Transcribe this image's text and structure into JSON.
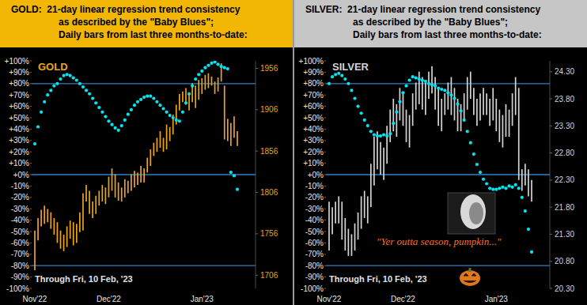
{
  "chart_data": [
    {
      "type": "combo",
      "title": [
        "GOLD:  21-day linear regression trend consistency",
        "as described by the \"Baby Blues\";",
        "Daily bars from last three months-to-date:"
      ],
      "label": "GOLD",
      "footnote": "Through Fri, 10 Feb, '23",
      "categories": [
        "Nov'22",
        null,
        null,
        null,
        null,
        null,
        null,
        null,
        null,
        null,
        null,
        null,
        null,
        null,
        null,
        null,
        null,
        null,
        null,
        null,
        null,
        null,
        null,
        "Dec'22",
        null,
        null,
        null,
        null,
        null,
        null,
        null,
        null,
        null,
        null,
        null,
        null,
        null,
        null,
        null,
        null,
        null,
        null,
        null,
        null,
        null,
        null,
        null,
        null,
        null,
        null,
        null,
        null,
        "Jan'23",
        null,
        null,
        null,
        null,
        null,
        null,
        null,
        null,
        null,
        null,
        null
      ],
      "ylim": [
        -100,
        100
      ],
      "yticks": [
        {
          "value": 100,
          "label": "+100%"
        },
        {
          "value": 90,
          "label": "+90%"
        },
        {
          "value": 80,
          "label": "+80%"
        },
        {
          "value": 70,
          "label": "+70%"
        },
        {
          "value": 60,
          "label": "+60%"
        },
        {
          "value": 50,
          "label": "+50%"
        },
        {
          "value": 40,
          "label": "+40%"
        },
        {
          "value": 30,
          "label": "+30%"
        },
        {
          "value": 20,
          "label": "+20%"
        },
        {
          "value": 10,
          "label": "+10%"
        },
        {
          "value": 0,
          "label": "+0%"
        },
        {
          "value": -10,
          "label": "-10%"
        },
        {
          "value": -20,
          "label": "-20%"
        },
        {
          "value": -30,
          "label": "-30%"
        },
        {
          "value": -40,
          "label": "-40%"
        },
        {
          "value": -50,
          "label": "-50%"
        },
        {
          "value": -60,
          "label": "-60%"
        },
        {
          "value": -70,
          "label": "-70%"
        },
        {
          "value": -80,
          "label": "-80%"
        },
        {
          "value": -90,
          "label": "-90%"
        },
        {
          "value": -100,
          "label": "-100%"
        }
      ],
      "y2lim": [
        1690,
        1965
      ],
      "y2ticks": [
        1956,
        1906,
        1856,
        1806,
        1756,
        1706
      ],
      "reference_lines": [
        80,
        0,
        -80
      ],
      "series": [
        {
          "type": "bar",
          "axis": "y2",
          "color": "#eaa520",
          "values": [
            1760,
            1775,
            1785,
            1790,
            1786,
            1782,
            1775,
            1770,
            1760,
            1755,
            1765,
            1772,
            1770,
            1768,
            1782,
            1805,
            1815,
            1808,
            1795,
            1802,
            1808,
            1815,
            1812,
            1825,
            1835,
            1828,
            1818,
            1812,
            1822,
            1820,
            1828,
            1832,
            1830,
            1838,
            1835,
            1848,
            1858,
            1866,
            1872,
            1880,
            1872,
            1888,
            1885,
            1900,
            1912,
            1925,
            1928,
            1932,
            1925,
            1938,
            1935,
            1942,
            1944,
            1948,
            1950,
            1946,
            1940,
            1945,
            1962,
            1935,
            1895,
            1890,
            1898,
            1880
          ],
          "low": [
            1712,
            1748,
            1765,
            1768,
            1770,
            1762,
            1755,
            1745,
            1738,
            1735,
            1740,
            1750,
            1742,
            1745,
            1758,
            1760,
            1795,
            1780,
            1775,
            1780,
            1790,
            1795,
            1792,
            1800,
            1808,
            1800,
            1796,
            1795,
            1800,
            1805,
            1808,
            1812,
            1815,
            1818,
            1818,
            1830,
            1838,
            1850,
            1855,
            1860,
            1855,
            1858,
            1868,
            1876,
            1888,
            1905,
            1915,
            1912,
            1905,
            1915,
            1908,
            1918,
            1925,
            1930,
            1932,
            1935,
            1925,
            1928,
            1940,
            1870,
            1868,
            1862,
            1872,
            1862
          ]
        },
        {
          "type": "scatter",
          "color": "#00e5f0",
          "marker": "circle",
          "values": [
            27,
            42,
            55,
            64,
            70,
            74,
            78,
            80,
            84,
            87,
            88,
            87,
            85,
            83,
            80,
            77,
            74,
            71,
            67,
            63,
            59,
            55,
            51,
            47,
            44,
            41,
            39,
            43,
            48,
            53,
            57,
            61,
            64,
            66,
            68,
            69,
            69,
            67,
            64,
            61,
            58,
            55,
            52,
            50,
            48,
            47,
            55,
            63,
            71,
            78,
            84,
            88,
            91,
            94,
            96,
            98,
            99,
            97,
            95,
            94,
            93,
            2,
            -1,
            -13
          ]
        }
      ]
    },
    {
      "type": "combo",
      "title": [
        "SILVER:  21-day linear regression trend consistency",
        "as described by the \"Baby Blues\";",
        "Daily bars from last three months-to-date:"
      ],
      "label": "SILVER",
      "footnote": "Through Fri, 10 Feb, '23",
      "annotation": "\"Yer outta season, pumpkin...\"",
      "categories": [
        "Nov'22",
        null,
        null,
        null,
        null,
        null,
        null,
        null,
        null,
        null,
        null,
        null,
        null,
        null,
        null,
        null,
        null,
        null,
        null,
        null,
        null,
        null,
        null,
        "Dec'22",
        null,
        null,
        null,
        null,
        null,
        null,
        null,
        null,
        null,
        null,
        null,
        null,
        null,
        null,
        null,
        null,
        null,
        null,
        null,
        null,
        null,
        null,
        null,
        null,
        null,
        null,
        null,
        null,
        "Jan'23",
        null,
        null,
        null,
        null,
        null,
        null,
        null,
        null,
        null,
        null,
        null
      ],
      "ylim": [
        -100,
        100
      ],
      "yticks": [
        {
          "value": 100,
          "label": "+100%"
        },
        {
          "value": 90,
          "label": "+90%"
        },
        {
          "value": 80,
          "label": "+80%"
        },
        {
          "value": 70,
          "label": "+70%"
        },
        {
          "value": 60,
          "label": "+60%"
        },
        {
          "value": 50,
          "label": "+50%"
        },
        {
          "value": 40,
          "label": "+40%"
        },
        {
          "value": 30,
          "label": "+30%"
        },
        {
          "value": 20,
          "label": "+20%"
        },
        {
          "value": 10,
          "label": "+10%"
        },
        {
          "value": 0,
          "label": "+0%"
        },
        {
          "value": -10,
          "label": "-10%"
        },
        {
          "value": -20,
          "label": "-20%"
        },
        {
          "value": -30,
          "label": "-30%"
        },
        {
          "value": -40,
          "label": "-40%"
        },
        {
          "value": -50,
          "label": "-50%"
        },
        {
          "value": -60,
          "label": "-60%"
        },
        {
          "value": -70,
          "label": "-70%"
        },
        {
          "value": -80,
          "label": "-80%"
        },
        {
          "value": -90,
          "label": "-90%"
        },
        {
          "value": -100,
          "label": "-100%"
        }
      ],
      "y2lim": [
        20.3,
        24.5
      ],
      "y2ticks": [
        {
          "value": 24.3,
          "label": "24.30"
        },
        {
          "value": 23.8,
          "label": "23.80"
        },
        {
          "value": 23.3,
          "label": "23.30"
        },
        {
          "value": 22.8,
          "label": "22.80"
        },
        {
          "value": 22.3,
          "label": "22.30"
        },
        {
          "value": 21.8,
          "label": "21.80"
        },
        {
          "value": 21.3,
          "label": "21.30"
        },
        {
          "value": 20.8,
          "label": "20.80"
        },
        {
          "value": 20.3,
          "label": "20.30"
        }
      ],
      "reference_lines": [
        80,
        0,
        -80
      ],
      "series": [
        {
          "type": "bar",
          "axis": "y2",
          "color": "#d4d4d4",
          "values": [
            21.9,
            21.8,
            21.9,
            22.0,
            21.9,
            21.6,
            21.4,
            21.3,
            21.5,
            21.7,
            22.0,
            22.1,
            22.0,
            22.6,
            23.1,
            23.2,
            23.0,
            22.9,
            23.3,
            23.6,
            23.8,
            23.7,
            24.0,
            23.9,
            23.6,
            23.5,
            23.9,
            24.1,
            24.3,
            24.2,
            24.1,
            24.3,
            24.4,
            24.2,
            24.0,
            23.8,
            23.9,
            24.1,
            24.2,
            24.0,
            23.8,
            23.7,
            23.9,
            24.2,
            24.3,
            24.0,
            23.8,
            23.9,
            24.0,
            23.9,
            23.8,
            24.0,
            23.8,
            23.6,
            23.5,
            23.7,
            23.6,
            23.9,
            24.2,
            24.0,
            22.5,
            22.6,
            22.5,
            22.3
          ],
          "low": [
            21.0,
            21.3,
            21.5,
            21.5,
            21.2,
            21.0,
            20.9,
            20.9,
            21.0,
            21.2,
            21.4,
            21.6,
            21.5,
            21.8,
            22.2,
            22.5,
            22.4,
            22.3,
            22.6,
            23.0,
            23.2,
            23.1,
            23.4,
            23.3,
            23.0,
            22.9,
            23.3,
            23.6,
            23.7,
            23.6,
            23.5,
            23.8,
            23.9,
            23.6,
            23.3,
            23.2,
            23.5,
            23.6,
            23.5,
            23.4,
            23.2,
            23.2,
            23.4,
            23.6,
            23.8,
            23.5,
            23.3,
            23.4,
            23.5,
            23.5,
            23.3,
            23.4,
            23.2,
            23.0,
            22.9,
            23.1,
            23.1,
            23.3,
            23.5,
            22.3,
            22.1,
            22.2,
            22.0,
            21.9
          ]
        },
        {
          "type": "scatter",
          "color": "#00e5f0",
          "marker": "circle",
          "values": [
            80,
            86,
            88,
            89,
            87,
            84,
            80,
            74,
            67,
            60,
            54,
            48,
            43,
            38,
            35,
            34,
            34,
            35,
            34,
            36,
            45,
            55,
            64,
            72,
            78,
            83,
            86,
            85,
            84,
            83,
            82,
            80,
            79,
            78,
            76,
            75,
            74,
            72,
            70,
            67,
            62,
            56,
            48,
            38,
            28,
            18,
            9,
            2,
            -4,
            -8,
            -12,
            -13,
            -13,
            -12,
            -11,
            -12,
            -10,
            -11,
            -9,
            -12,
            -20,
            -32,
            -48,
            -68
          ]
        }
      ]
    }
  ]
}
